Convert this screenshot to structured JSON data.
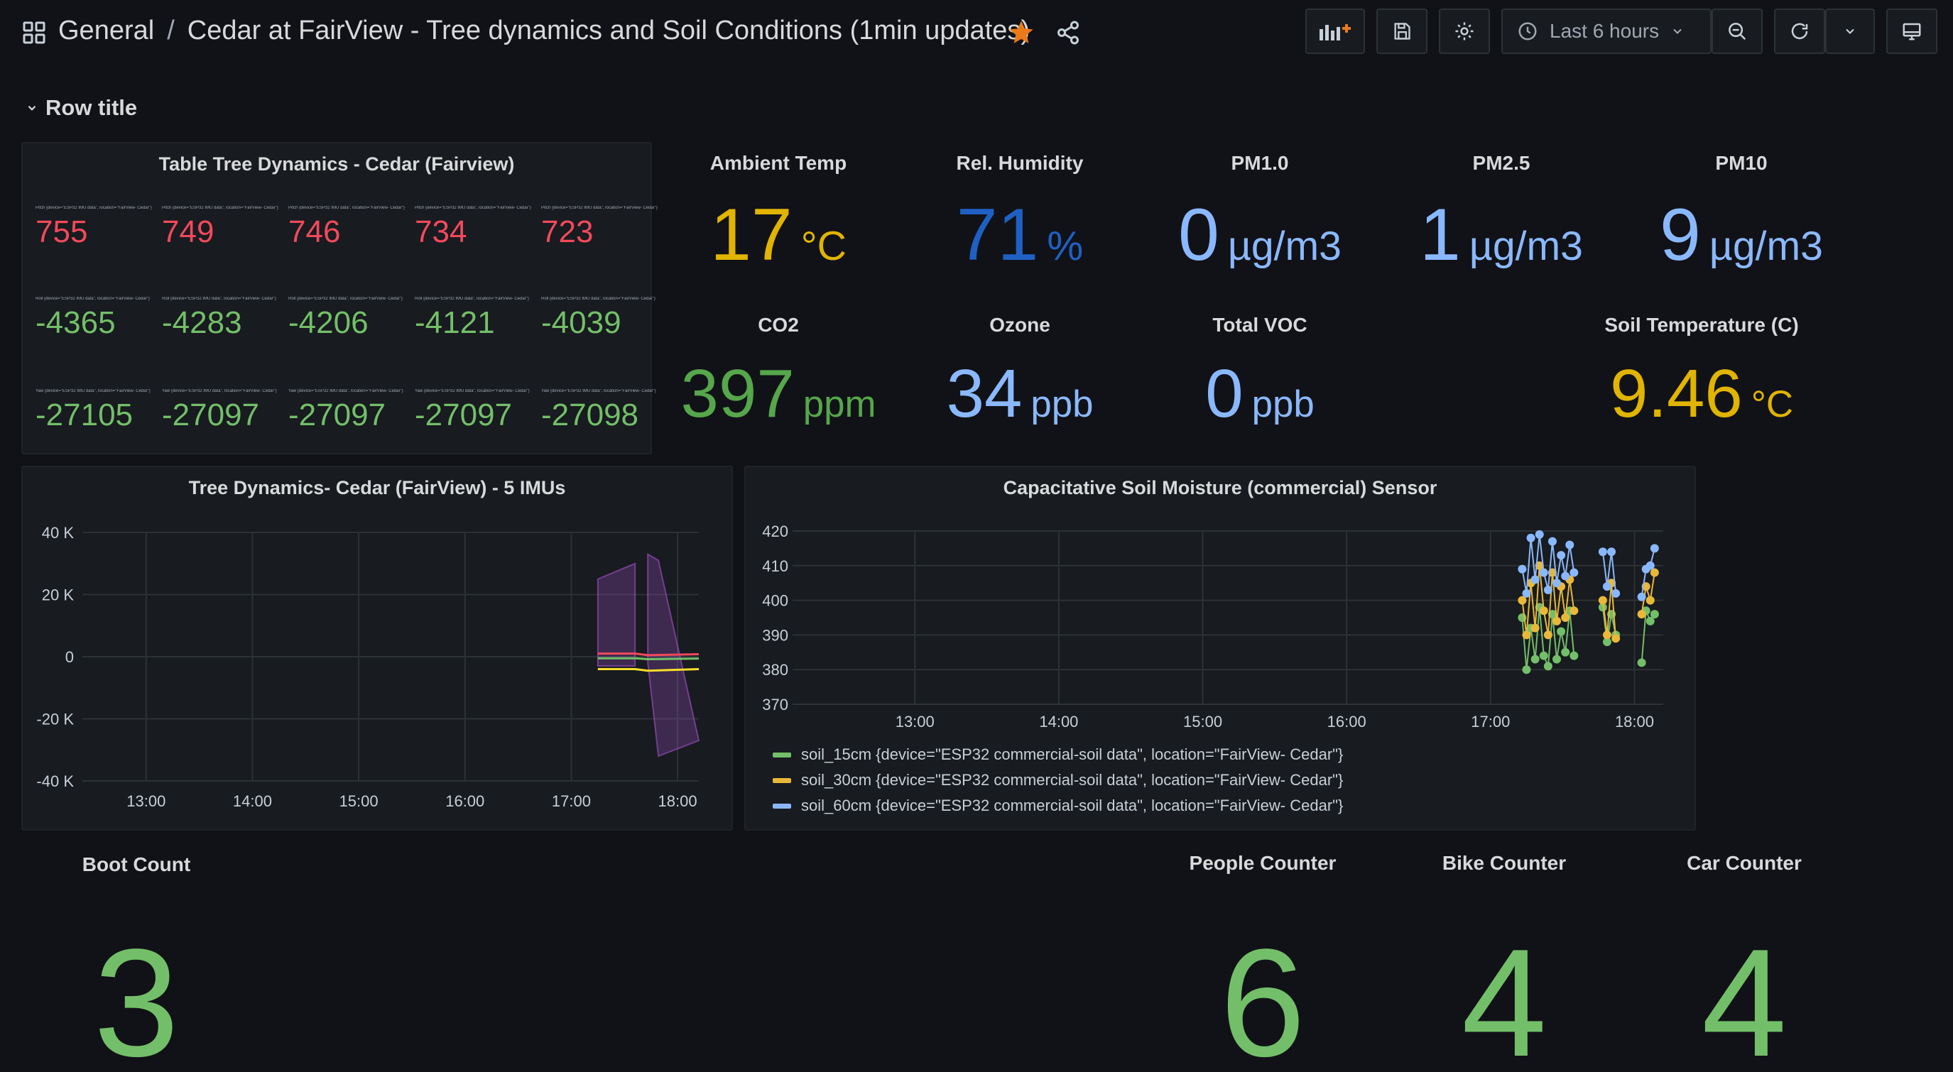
{
  "header": {
    "breadcrumb_root": "General",
    "separator": "/",
    "dashboard_title": "Cedar at FairView - Tree dynamics and Soil Conditions (1min updates)",
    "time_range": "Last 6 hours",
    "icons": [
      "apps-icon",
      "star-icon",
      "share-icon",
      "add-panel-icon",
      "save-icon",
      "settings-icon",
      "clock-icon",
      "chevron-down-icon",
      "zoom-out-icon",
      "refresh-icon",
      "tv-mode-icon"
    ],
    "colors": {
      "star": "#eb7b18",
      "bg": "#111217",
      "panel": "#181b1f"
    }
  },
  "row": {
    "title": "Row title"
  },
  "table_panel": {
    "title": "Table Tree Dynamics - Cedar (Fairview)",
    "rows": [
      {
        "label": "Pitch {device=\"ESP32 IMU data\", location=\"FairView- Cedar\"}",
        "values": [
          "755",
          "749",
          "746",
          "734",
          "723"
        ],
        "color": "#f2495c"
      },
      {
        "label": "Roll {device=\"ESP32 IMU data\", location=\"FairView- Cedar\"}",
        "values": [
          "-4365",
          "-4283",
          "-4206",
          "-4121",
          "-4039"
        ],
        "color": "#73bf69"
      },
      {
        "label": "Yaw {device=\"ESP32 IMU data\", location=\"FairView- Cedar\"}",
        "values": [
          "-27105",
          "-27097",
          "-27097",
          "-27097",
          "-27098"
        ],
        "color": "#73bf69"
      }
    ]
  },
  "stats_row1": [
    {
      "title": "Ambient Temp",
      "value": "17",
      "unit": "°C",
      "color": "#e0b400"
    },
    {
      "title": "Rel. Humidity",
      "value": "71",
      "unit": "%",
      "color": "#1f60c4"
    },
    {
      "title": "PM1.0",
      "value": "0",
      "unit": "µg/m3",
      "color": "#8ab8ff"
    },
    {
      "title": "PM2.5",
      "value": "1",
      "unit": "µg/m3",
      "color": "#8ab8ff"
    },
    {
      "title": "PM10",
      "value": "9",
      "unit": "µg/m3",
      "color": "#8ab8ff"
    }
  ],
  "stats_row2": [
    {
      "title": "CO2",
      "value": "397",
      "unit": "ppm",
      "color": "#56a64b"
    },
    {
      "title": "Ozone",
      "value": "34",
      "unit": "ppb",
      "color": "#8ab8ff"
    },
    {
      "title": "Total VOC",
      "value": "0",
      "unit": "ppb",
      "color": "#8ab8ff"
    },
    {
      "title": "Soil Temperature (C)",
      "value": "9.46",
      "unit": "°C",
      "color": "#e0b400"
    }
  ],
  "tree_chart": {
    "title": "Tree Dynamics- Cedar (FairView) - 5 IMUs",
    "chart_data": {
      "type": "area",
      "x_ticks": [
        "13:00",
        "14:00",
        "15:00",
        "16:00",
        "17:00",
        "18:00"
      ],
      "y_ticks": [
        "40 K",
        "20 K",
        "0",
        "-20 K",
        "-40 K"
      ],
      "ylim": [
        -40000,
        40000
      ],
      "xlim": [
        12.4,
        18.2
      ],
      "series": [
        {
          "x": [
            17.25,
            17.6
          ],
          "upper": [
            25000,
            30000
          ],
          "lower": [
            -3000,
            -3000
          ],
          "color": "#a352cc"
        },
        {
          "x": [
            17.72,
            17.82,
            18.2
          ],
          "upper": [
            33000,
            31000,
            -27000
          ],
          "lower": [
            -2000,
            -32000,
            -27000
          ],
          "color": "#a352cc"
        },
        {
          "x": [
            17.25,
            17.6,
            17.72,
            18.2
          ],
          "values": [
            1000,
            1000,
            500,
            800
          ],
          "color": "#f2495c"
        },
        {
          "x": [
            17.25,
            17.6,
            17.72,
            18.2
          ],
          "values": [
            -4000,
            -4000,
            -4500,
            -4000
          ],
          "color": "#fade2a"
        },
        {
          "x": [
            17.25,
            17.6,
            17.72,
            18.2
          ],
          "values": [
            -500,
            -500,
            -800,
            -600
          ],
          "color": "#73bf69"
        }
      ]
    }
  },
  "soil_chart": {
    "title": "Capacitative Soil Moisture (commercial) Sensor",
    "chart_data": {
      "type": "line",
      "x_ticks": [
        "13:00",
        "14:00",
        "15:00",
        "16:00",
        "17:00",
        "18:00"
      ],
      "y_ticks": [
        "420",
        "410",
        "400",
        "390",
        "380",
        "370"
      ],
      "ylim": [
        370,
        420
      ],
      "xlim": [
        12.15,
        18.2
      ],
      "series": [
        {
          "name": "soil_15cm {device=\"ESP32 commercial-soil data\", location=\"FairView- Cedar\"}",
          "color": "#73bf69",
          "x": [
            17.22,
            17.25,
            17.28,
            17.31,
            17.34,
            17.37,
            17.4,
            17.43,
            17.46,
            17.49,
            17.52,
            17.55,
            17.58,
            17.78,
            17.81,
            17.84,
            17.87,
            18.05,
            18.08,
            18.11,
            18.14
          ],
          "values": [
            395,
            380,
            392,
            383,
            398,
            384,
            381,
            396,
            383,
            391,
            385,
            397,
            384,
            398,
            388,
            396,
            390,
            382,
            397,
            394,
            396
          ]
        },
        {
          "name": "soil_30cm {device=\"ESP32 commercial-soil data\", location=\"FairView- Cedar\"}",
          "color": "#eab839",
          "x": [
            17.22,
            17.25,
            17.28,
            17.31,
            17.34,
            17.37,
            17.4,
            17.43,
            17.46,
            17.49,
            17.52,
            17.55,
            17.58,
            17.78,
            17.81,
            17.84,
            17.87,
            18.05,
            18.08,
            18.11,
            18.14
          ],
          "values": [
            400,
            390,
            405,
            392,
            410,
            397,
            390,
            408,
            394,
            404,
            395,
            406,
            397,
            400,
            390,
            405,
            389,
            396,
            404,
            400,
            408
          ]
        },
        {
          "name": "soil_60cm {device=\"ESP32 commercial-soil data\", location=\"FairView- Cedar\"}",
          "color": "#8ab8ff",
          "x": [
            17.22,
            17.25,
            17.28,
            17.31,
            17.34,
            17.37,
            17.4,
            17.43,
            17.46,
            17.49,
            17.52,
            17.55,
            17.58,
            17.78,
            17.81,
            17.84,
            17.87,
            18.05,
            18.08,
            18.11,
            18.14
          ],
          "values": [
            409,
            402,
            418,
            406,
            419,
            408,
            403,
            417,
            405,
            413,
            407,
            416,
            408,
            414,
            404,
            414,
            402,
            401,
            409,
            410,
            415
          ]
        }
      ]
    }
  },
  "stats_row3": [
    {
      "title": "Boot Count",
      "value": "3",
      "color": "#73bf69"
    },
    {
      "title": "People Counter",
      "value": "6",
      "color": "#73bf69"
    },
    {
      "title": "Bike Counter",
      "value": "4",
      "color": "#73bf69"
    },
    {
      "title": "Car Counter",
      "value": "4",
      "color": "#73bf69"
    }
  ]
}
